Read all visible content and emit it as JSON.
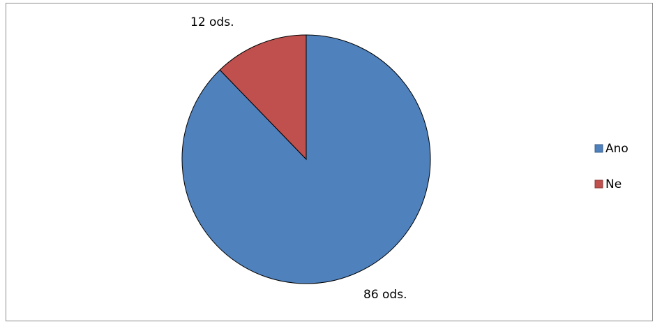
{
  "chart_data": {
    "type": "pie",
    "title": "",
    "slices": [
      {
        "label": "Ano",
        "value": 86,
        "data_label": "86 ods.",
        "color": "#4F81BD"
      },
      {
        "label": "Ne",
        "value": 12,
        "data_label": "12 ods.",
        "color": "#C0504D"
      }
    ],
    "start_angle_deg": 90,
    "direction": "clockwise",
    "legend_position": "right"
  }
}
